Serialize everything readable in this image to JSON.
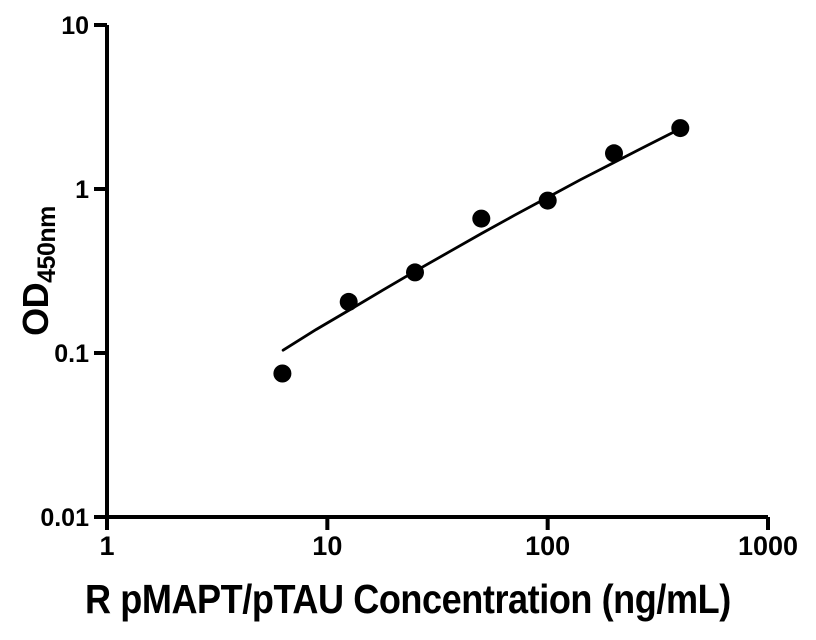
{
  "colors": {
    "background": "#ffffff",
    "ink": "#000000"
  },
  "chart_data": {
    "type": "scatter",
    "title": "",
    "xlabel": "R pMAPT/pTAU Concentration (ng/mL)",
    "ylabel": "OD",
    "ylabel_subscript": "450nm",
    "x_scale": "log",
    "y_scale": "log",
    "xlim": [
      1,
      1000
    ],
    "ylim": [
      0.01,
      10
    ],
    "grid": false,
    "legend": "none",
    "x_ticks": [
      {
        "value": 1,
        "label": "1"
      },
      {
        "value": 10,
        "label": "10"
      },
      {
        "value": 100,
        "label": "100"
      },
      {
        "value": 1000,
        "label": "1000"
      }
    ],
    "y_ticks": [
      {
        "value": 0.01,
        "label": "0.01"
      },
      {
        "value": 0.1,
        "label": "0.1"
      },
      {
        "value": 1,
        "label": "1"
      },
      {
        "value": 10,
        "label": "10"
      }
    ],
    "series": [
      {
        "name": "standard-points",
        "type": "scatter",
        "marker": "filled-circle",
        "marker_radius_px": 9,
        "color": "#000000",
        "points": [
          {
            "x": 6.25,
            "y": 0.075
          },
          {
            "x": 12.5,
            "y": 0.205
          },
          {
            "x": 25,
            "y": 0.31
          },
          {
            "x": 50,
            "y": 0.66
          },
          {
            "x": 100,
            "y": 0.85
          },
          {
            "x": 200,
            "y": 1.65
          },
          {
            "x": 400,
            "y": 2.35
          }
        ]
      },
      {
        "name": "fit-curve",
        "type": "line",
        "color": "#000000",
        "stroke_width_px": 2.8,
        "points": [
          {
            "x": 6.3,
            "y": 0.104
          },
          {
            "x": 8.9,
            "y": 0.139
          },
          {
            "x": 12.6,
            "y": 0.183
          },
          {
            "x": 17.8,
            "y": 0.241
          },
          {
            "x": 25.1,
            "y": 0.316
          },
          {
            "x": 35.5,
            "y": 0.412
          },
          {
            "x": 50.1,
            "y": 0.535
          },
          {
            "x": 70.8,
            "y": 0.692
          },
          {
            "x": 100,
            "y": 0.889
          },
          {
            "x": 141,
            "y": 1.139
          },
          {
            "x": 200,
            "y": 1.45
          },
          {
            "x": 282,
            "y": 1.84
          },
          {
            "x": 403,
            "y": 2.34
          }
        ]
      }
    ]
  }
}
